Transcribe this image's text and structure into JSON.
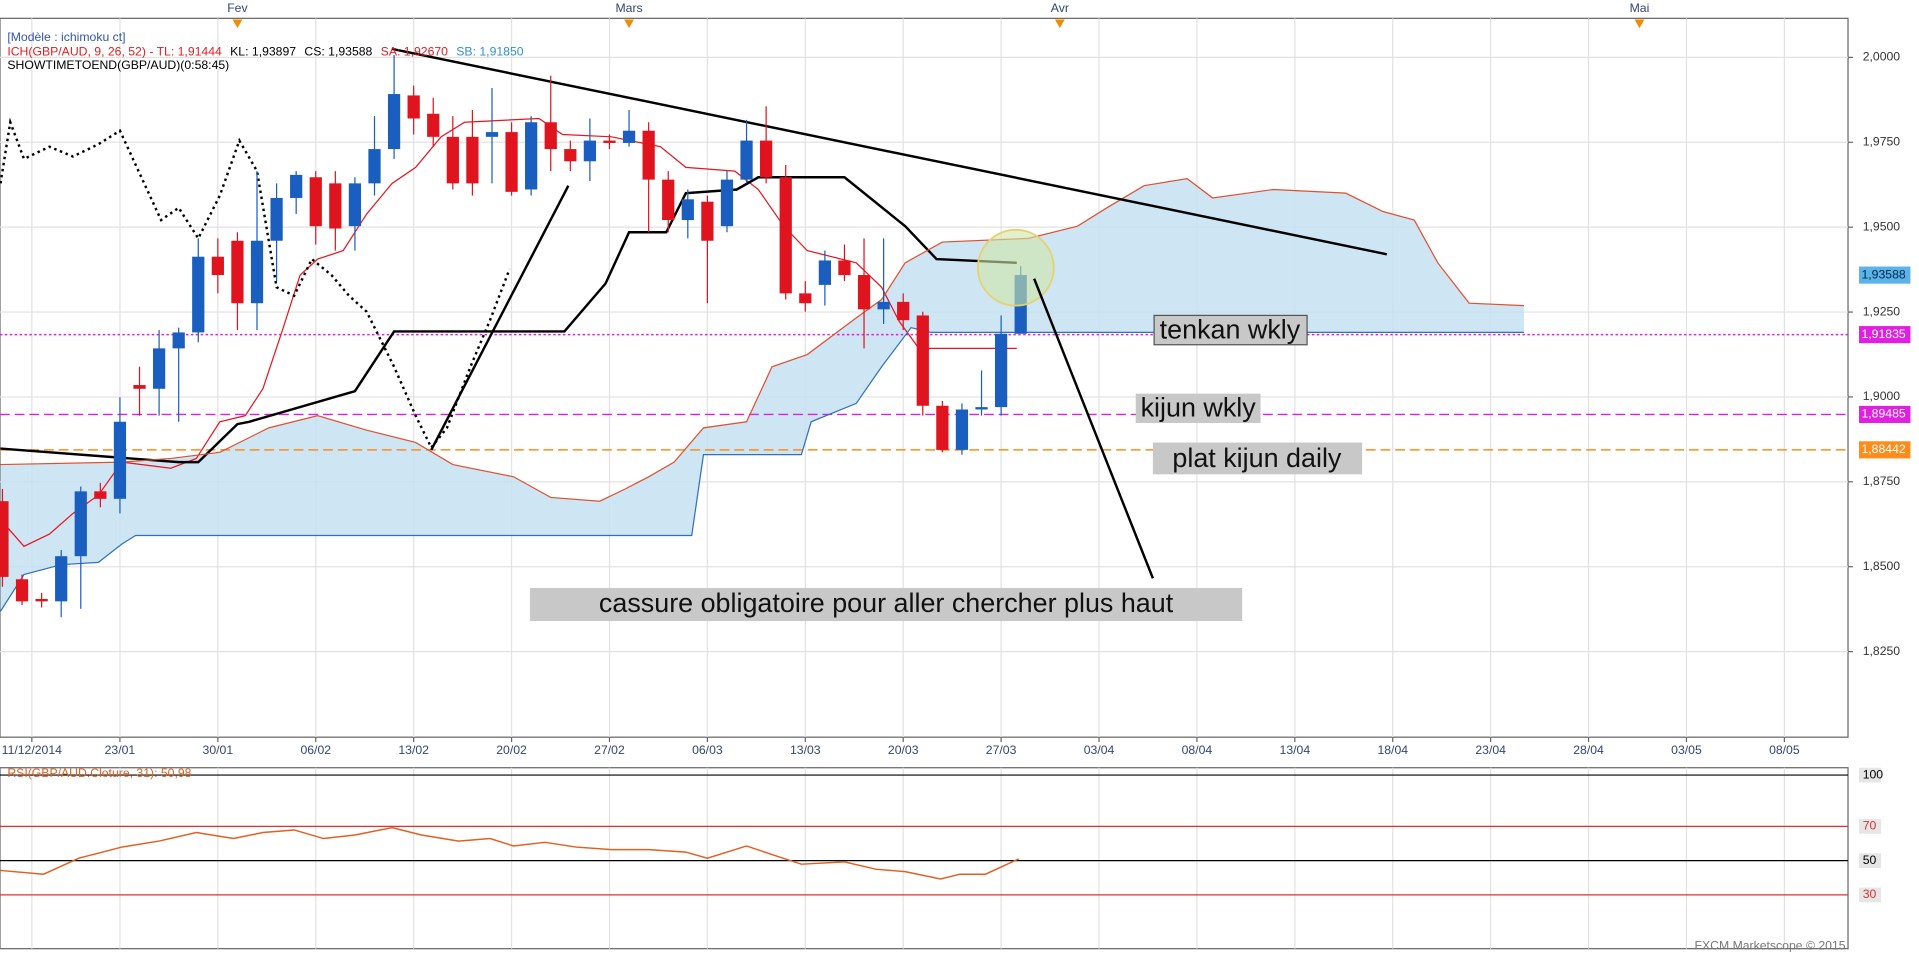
{
  "chart_data": [
    {
      "type": "candlestick",
      "header": {
        "model": "[Modèle : ichimoku ct]",
        "indicator": [
          {
            "text": "ICH(GBP/AUD, 9, 26, 52) -  TL: 1,91444",
            "color": "#e02020"
          },
          {
            "text": "KL: 1,93897",
            "color": "#000000"
          },
          {
            "text": "CS: 1,93588",
            "color": "#000000"
          },
          {
            "text": "SA: 1,92670",
            "color": "#e02020"
          },
          {
            "text": "SB: 1,91850",
            "color": "#3090d0"
          }
        ],
        "timer": "SHOWTIMETOEND(GBP/AUD)(0:58:45)"
      },
      "up_color": "#1a5fbf",
      "down_color": "#e0141e",
      "open": [
        1.8693,
        1.8463,
        1.8405,
        1.8398,
        1.8531,
        1.8722,
        1.87,
        1.9035,
        1.9024,
        1.9143,
        1.919,
        1.9413,
        1.946,
        1.9276,
        1.946,
        1.9586,
        1.9647,
        1.9629,
        1.9503,
        1.9629,
        1.973,
        1.9888,
        1.9834,
        1.9766,
        1.9766,
        1.9766,
        1.978,
        1.9611,
        1.9809,
        1.973,
        1.9694,
        1.9755,
        1.9748,
        1.9784,
        1.964,
        1.9521,
        1.9575,
        1.9503,
        1.964,
        1.9755,
        1.9647,
        1.9305,
        1.933,
        1.9402,
        1.9359,
        1.9258,
        1.928,
        1.924,
        1.8974,
        1.8844,
        1.8963,
        1.897,
        1.9186
      ],
      "high": [
        1.8729,
        1.8477,
        1.8423,
        1.8549,
        1.8736,
        1.8747,
        1.8999,
        1.9089,
        1.9197,
        1.9204,
        1.9467,
        1.9467,
        1.9485,
        1.9665,
        1.9629,
        1.9665,
        1.9665,
        1.9665,
        1.9647,
        1.9827,
        2.0007,
        1.9917,
        1.9881,
        1.9827,
        1.9845,
        1.991,
        1.9809,
        1.9827,
        1.9946,
        1.9755,
        1.982,
        1.9773,
        1.9845,
        1.9809,
        1.9665,
        1.9611,
        1.9593,
        1.9665,
        1.9816,
        1.9856,
        1.9683,
        1.9341,
        1.9431,
        1.9449,
        1.9467,
        1.9467,
        1.9305,
        1.9251,
        1.8988,
        1.8981,
        1.9078,
        1.924,
        1.9385
      ],
      "low": [
        1.8441,
        1.8387,
        1.838,
        1.8351,
        1.8376,
        1.8675,
        1.8657,
        1.8945,
        1.8945,
        1.8927,
        1.9161,
        1.9305,
        1.9197,
        1.9197,
        1.9341,
        1.9539,
        1.9449,
        1.9431,
        1.9431,
        1.9593,
        1.9701,
        1.9773,
        1.9737,
        1.9611,
        1.9593,
        1.9629,
        1.9593,
        1.9593,
        1.9665,
        1.9665,
        1.9636,
        1.973,
        1.9737,
        1.9485,
        1.9485,
        1.9467,
        1.9276,
        1.9485,
        1.9629,
        1.9629,
        1.9287,
        1.9251,
        1.9269,
        1.9341,
        1.9143,
        1.9215,
        1.9197,
        1.8945,
        1.8837,
        1.883,
        1.8945,
        1.8945,
        1.9204
      ],
      "close": [
        1.847,
        1.8398,
        1.8398,
        1.8531,
        1.8722,
        1.87,
        1.8927,
        1.9024,
        1.9143,
        1.919,
        1.9413,
        1.9359,
        1.9276,
        1.946,
        1.9586,
        1.9654,
        1.9503,
        1.9496,
        1.9629,
        1.973,
        1.9892,
        1.982,
        1.9766,
        1.9629,
        1.9629,
        1.978,
        1.9604,
        1.9809,
        1.973,
        1.9694,
        1.9755,
        1.9748,
        1.9784,
        1.964,
        1.9521,
        1.9582,
        1.946,
        1.964,
        1.9755,
        1.9647,
        1.9305,
        1.9276,
        1.9402,
        1.9359,
        1.9258,
        1.928,
        1.9226,
        1.8974,
        1.8844,
        1.8963,
        1.897,
        1.9186,
        1.9359
      ],
      "lines": {
        "tenkan": {
          "color": "#e8141e",
          "width": 1,
          "dash": "none",
          "x": [
            -0.1,
            1.1,
            2.4,
            3.6,
            4.9,
            6.1,
            8.6,
            9.9,
            11.1,
            12.4,
            13.3,
            14.3,
            15.2,
            16.1,
            17.4,
            18.6,
            19.9,
            21.1,
            22.4,
            23.6,
            27.4,
            28.6,
            31.1,
            33.6,
            34.9,
            37.4,
            38.6,
            39.9,
            41.1,
            43.6,
            44.9,
            45.8,
            46.8,
            51.8
          ],
          "values": [
            1.8639,
            1.856,
            1.8596,
            1.8657,
            1.8711,
            1.8808,
            1.879,
            1.8819,
            1.8927,
            1.8945,
            1.9024,
            1.9197,
            1.9359,
            1.9406,
            1.9431,
            1.9539,
            1.9629,
            1.9676,
            1.9766,
            1.9809,
            1.982,
            1.9773,
            1.9766,
            1.9737,
            1.9676,
            1.9665,
            1.9611,
            1.9503,
            1.9431,
            1.9395,
            1.9323,
            1.9222,
            1.9143,
            1.9143
          ]
        },
        "kijun": {
          "color": "#000000",
          "width": 2,
          "dash": "none",
          "x": [
            -0.1,
            9,
            10,
            12,
            12.6,
            18,
            20,
            28.7,
            30.8,
            32,
            33.9,
            34.9,
            37.5,
            38.6,
            43,
            46.1,
            47.7,
            51.8
          ],
          "values": [
            1.8848,
            1.8808,
            1.8808,
            1.892,
            1.8927,
            1.9017,
            1.9193,
            1.9193,
            1.9334,
            1.9485,
            1.9485,
            1.96,
            1.9611,
            1.9647,
            1.9647,
            1.9503,
            1.9406,
            1.9395
          ]
        },
        "chikou": {
          "color": "#000000",
          "width": 2,
          "dash": "2,3",
          "x": [
            -0.1,
            0.4,
            1.1,
            2.4,
            3.6,
            4.9,
            6,
            8.1,
            9,
            10,
            11.1,
            12.1,
            13,
            14,
            14.9,
            15.8,
            16.8,
            17.7,
            18.6,
            20,
            21.1,
            21.9,
            22.7,
            23.9,
            24.9,
            25.9
          ],
          "values": [
            1.9629,
            1.9809,
            1.9701,
            1.9737,
            1.9708,
            1.9744,
            1.9784,
            1.9521,
            1.9557,
            1.9467,
            1.9593,
            1.9755,
            1.9665,
            1.9323,
            1.9298,
            1.9406,
            1.9359,
            1.9298,
            1.9251,
            1.9089,
            1.8945,
            1.8851,
            1.8909,
            1.9089,
            1.9226,
            1.9377
          ]
        },
        "senkou_a": {
          "color": "#e05030",
          "width": 1,
          "dash": "none",
          "x": [
            -0.1,
            6.1,
            8.6,
            11.1,
            13.6,
            16.1,
            18.6,
            21.1,
            23,
            26.1,
            28,
            30.5,
            31.8,
            33,
            34.3,
            35.8,
            38,
            39.3,
            41.1,
            43.6,
            44.9,
            46.1,
            48,
            52.4,
            54.9,
            56.4,
            58.3,
            60.5,
            61.8,
            64.9,
            68.6,
            70.5,
            72.1,
            73.3,
            74.9,
            77.7
          ],
          "values": [
            1.8801,
            1.8808,
            1.8819,
            1.8837,
            1.8909,
            1.8945,
            1.8902,
            1.8866,
            1.8801,
            1.8765,
            1.8704,
            1.8693,
            1.8729,
            1.8765,
            1.8808,
            1.8909,
            1.8927,
            1.9089,
            1.9125,
            1.9233,
            1.9287,
            1.9395,
            1.9456,
            1.9467,
            1.9503,
            1.9557,
            1.9622,
            1.9643,
            1.9586,
            1.9611,
            1.96,
            1.9546,
            1.9521,
            1.9395,
            1.9276,
            1.9269
          ]
        },
        "senkou_b": {
          "color": "#3070c0",
          "width": 1,
          "dash": "none",
          "x": [
            -0.1,
            1.1,
            3,
            4.9,
            6.1,
            6.8,
            35.2,
            35.8,
            40.8,
            41.3,
            43.6,
            44.9,
            46.4,
            47.4,
            77.7
          ],
          "values": [
            1.8369,
            1.8477,
            1.8506,
            1.8513,
            1.8567,
            1.8592,
            1.8592,
            1.883,
            1.883,
            1.8927,
            1.8981,
            1.9089,
            1.9204,
            1.919,
            1.919
          ]
        }
      },
      "cloud_color": "#c6e1f1",
      "trendlines": [
        {
          "x": [
            19.9,
            70.7
          ],
          "values": [
            2.0025,
            1.942
          ]
        },
        {
          "x": [
            21.9,
            28.9
          ],
          "values": [
            1.8844,
            1.9622
          ]
        }
      ],
      "levels": [
        {
          "value": 1.91835,
          "label": "1,91835",
          "color": "#e020e0",
          "dash": "2,2"
        },
        {
          "value": 1.89485,
          "label": "1,89485",
          "color": "#e020e0",
          "dash": "8,4"
        },
        {
          "value": 1.88442,
          "label": "1,88442",
          "color": "#ff8c1a",
          "dash": "8,4"
        }
      ],
      "last": {
        "value": 1.93588,
        "label": "1,93588",
        "color": "#5ab4e8"
      },
      "xlim": [
        -0.125,
        94.25
      ],
      "ylim": [
        1.7998,
        2.0115
      ],
      "yticks": [
        {
          "value": 2.0,
          "label": "2,0000"
        },
        {
          "value": 1.975,
          "label": "1,9750"
        },
        {
          "value": 1.95,
          "label": "1,9500"
        },
        {
          "value": 1.925,
          "label": "1,9250"
        },
        {
          "value": 1.9,
          "label": "1,9000"
        },
        {
          "value": 1.875,
          "label": "1,8750"
        },
        {
          "value": 1.85,
          "label": "1,8500"
        },
        {
          "value": 1.825,
          "label": "1,8250"
        }
      ],
      "xticks": [
        {
          "value": 1.5,
          "label": "11/12/2014"
        },
        {
          "value": 6,
          "label": "23/01"
        },
        {
          "value": 11,
          "label": "30/01"
        },
        {
          "value": 16,
          "label": "06/02"
        },
        {
          "value": 21,
          "label": "13/02"
        },
        {
          "value": 26,
          "label": "20/02"
        },
        {
          "value": 31,
          "label": "27/02"
        },
        {
          "value": 36,
          "label": "06/03"
        },
        {
          "value": 41,
          "label": "13/03"
        },
        {
          "value": 46,
          "label": "20/03"
        },
        {
          "value": 51,
          "label": "27/03"
        },
        {
          "value": 56,
          "label": "03/04"
        },
        {
          "value": 61,
          "label": "08/04"
        },
        {
          "value": 66,
          "label": "13/04"
        },
        {
          "value": 71,
          "label": "18/04"
        },
        {
          "value": 76,
          "label": "23/04"
        },
        {
          "value": 81,
          "label": "28/04"
        },
        {
          "value": 86,
          "label": "03/05"
        },
        {
          "value": 91,
          "label": "08/05"
        }
      ],
      "month_ticks": [
        {
          "value": 12,
          "label": "Fev"
        },
        {
          "value": 32,
          "label": "Mars"
        },
        {
          "value": 54,
          "label": "Avr"
        },
        {
          "value": 83.6,
          "label": "Mai"
        }
      ],
      "grid": true,
      "annotations": [
        "tenkan wkly",
        "kijun wkly",
        "plat kijun daily",
        "cassure obligatoire pour aller chercher plus haut"
      ]
    },
    {
      "type": "line",
      "title": "RSI(GBP/AUD.Cloture, 31): 50,98",
      "color": "#e06020",
      "x": [
        -0.1,
        2.1,
        3.9,
        6.1,
        8,
        9.9,
        11.8,
        13.3,
        14.9,
        16.4,
        18,
        19.9,
        21.4,
        23.3,
        24.9,
        26.1,
        27.7,
        29.3,
        31.1,
        33,
        34.9,
        36,
        38,
        39.3,
        40.8,
        43,
        44.6,
        46.1,
        47.9,
        48.9,
        50.2,
        51.9
      ],
      "values": [
        44.3,
        42.1,
        51.4,
        57.9,
        61.4,
        66.4,
        62.9,
        66.4,
        67.9,
        62.9,
        65,
        69.3,
        65,
        61.4,
        62.9,
        58.6,
        60.7,
        57.9,
        56.4,
        56.4,
        55,
        51.4,
        58.6,
        53.6,
        47.9,
        49.3,
        45,
        43.6,
        39.3,
        42.1,
        42.1,
        50.98
      ],
      "xlim": [
        -0.125,
        94.25
      ],
      "ylim": [
        0,
        100
      ],
      "yticks": [
        100,
        70,
        50,
        30
      ],
      "tick_colors": [
        "#000000",
        "#e03030",
        "#000000",
        "#e03030"
      ],
      "footer": "FXCM Marketscope © 2015"
    }
  ]
}
